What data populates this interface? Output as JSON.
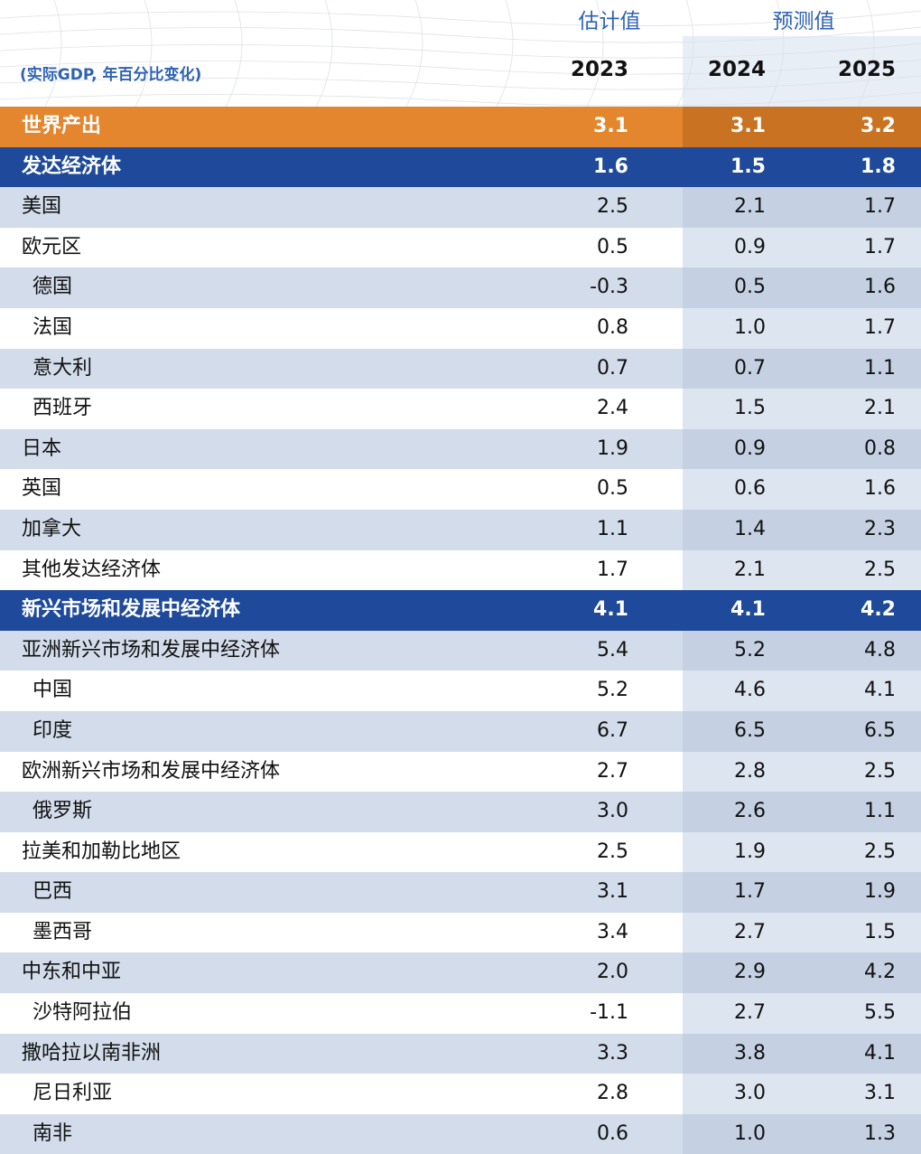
{
  "header": {
    "estimate_label": "估计值",
    "forecast_label": "预测值",
    "unit_label": "(实际GDP, 年百分比变化)",
    "years": [
      "2023",
      "2024",
      "2025"
    ]
  },
  "colors": {
    "world_row": "#e3862e",
    "group_row": "#1f4a9b",
    "header_blue": "#2f62b3",
    "stripe": "#d2dcea"
  },
  "chart_data": {
    "type": "table",
    "columns": [
      "2023",
      "2024",
      "2025"
    ],
    "rows": [
      {
        "label": "世界产出",
        "kind": "world",
        "values": [
          "3.1",
          "3.1",
          "3.2"
        ]
      },
      {
        "label": "发达经济体",
        "kind": "group",
        "values": [
          "1.6",
          "1.5",
          "1.8"
        ]
      },
      {
        "label": "美国",
        "kind": "item",
        "values": [
          "2.5",
          "2.1",
          "1.7"
        ]
      },
      {
        "label": "欧元区",
        "kind": "item",
        "values": [
          "0.5",
          "0.9",
          "1.7"
        ]
      },
      {
        "label": "德国",
        "kind": "sub",
        "values": [
          "-0.3",
          "0.5",
          "1.6"
        ]
      },
      {
        "label": "法国",
        "kind": "sub",
        "values": [
          "0.8",
          "1.0",
          "1.7"
        ]
      },
      {
        "label": "意大利",
        "kind": "sub",
        "values": [
          "0.7",
          "0.7",
          "1.1"
        ]
      },
      {
        "label": "西班牙",
        "kind": "sub",
        "values": [
          "2.4",
          "1.5",
          "2.1"
        ]
      },
      {
        "label": "日本",
        "kind": "item",
        "values": [
          "1.9",
          "0.9",
          "0.8"
        ]
      },
      {
        "label": "英国",
        "kind": "item",
        "values": [
          "0.5",
          "0.6",
          "1.6"
        ]
      },
      {
        "label": "加拿大",
        "kind": "item",
        "values": [
          "1.1",
          "1.4",
          "2.3"
        ]
      },
      {
        "label": "其他发达经济体",
        "kind": "item",
        "values": [
          "1.7",
          "2.1",
          "2.5"
        ]
      },
      {
        "label": "新兴市场和发展中经济体",
        "kind": "group",
        "values": [
          "4.1",
          "4.1",
          "4.2"
        ]
      },
      {
        "label": "亚洲新兴市场和发展中经济体",
        "kind": "item",
        "values": [
          "5.4",
          "5.2",
          "4.8"
        ]
      },
      {
        "label": "中国",
        "kind": "sub",
        "values": [
          "5.2",
          "4.6",
          "4.1"
        ]
      },
      {
        "label": "印度",
        "kind": "sub",
        "values": [
          "6.7",
          "6.5",
          "6.5"
        ]
      },
      {
        "label": "欧洲新兴市场和发展中经济体",
        "kind": "item",
        "values": [
          "2.7",
          "2.8",
          "2.5"
        ]
      },
      {
        "label": "俄罗斯",
        "kind": "sub",
        "values": [
          "3.0",
          "2.6",
          "1.1"
        ]
      },
      {
        "label": "拉美和加勒比地区",
        "kind": "item",
        "values": [
          "2.5",
          "1.9",
          "2.5"
        ]
      },
      {
        "label": "巴西",
        "kind": "sub",
        "values": [
          "3.1",
          "1.7",
          "1.9"
        ]
      },
      {
        "label": "墨西哥",
        "kind": "sub",
        "values": [
          "3.4",
          "2.7",
          "1.5"
        ]
      },
      {
        "label": "中东和中亚",
        "kind": "item",
        "values": [
          "2.0",
          "2.9",
          "4.2"
        ]
      },
      {
        "label": "沙特阿拉伯",
        "kind": "sub",
        "values": [
          "-1.1",
          "2.7",
          "5.5"
        ]
      },
      {
        "label": "撒哈拉以南非洲",
        "kind": "item",
        "values": [
          "3.3",
          "3.8",
          "4.1"
        ]
      },
      {
        "label": "尼日利亚",
        "kind": "sub",
        "values": [
          "2.8",
          "3.0",
          "3.1"
        ]
      },
      {
        "label": "南非",
        "kind": "sub",
        "values": [
          "0.6",
          "1.0",
          "1.3"
        ]
      }
    ]
  }
}
